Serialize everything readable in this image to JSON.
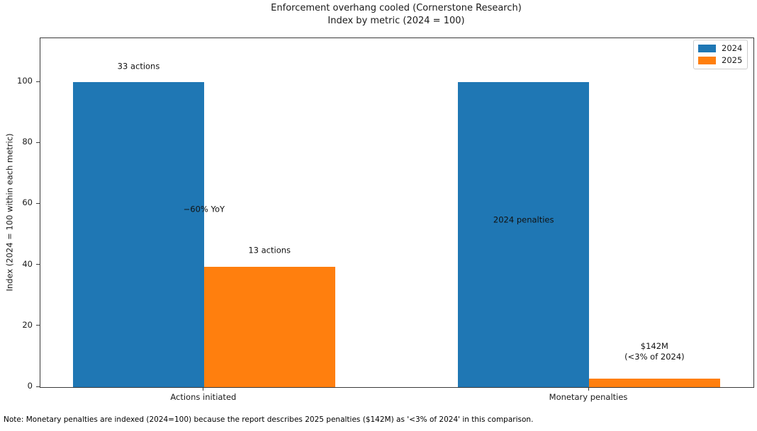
{
  "chart_data": {
    "type": "bar",
    "title": "Enforcement overhang cooled (Cornerstone Research)",
    "subtitle": "Index by metric (2024 = 100)",
    "ylabel": "Index (2024 = 100 within each metric)",
    "categories": [
      "Actions initiated",
      "Monetary penalties"
    ],
    "series": [
      {
        "name": "2024",
        "color": "#1f77b4",
        "values": [
          100,
          100
        ]
      },
      {
        "name": "2025",
        "color": "#ff7f0e",
        "values": [
          39.4,
          2.8
        ]
      }
    ],
    "yticks": [
      0,
      20,
      40,
      60,
      80,
      100
    ],
    "ylim": [
      0,
      114.4
    ],
    "xlim": [
      -0.425,
      1.427
    ],
    "bar_width": 0.34,
    "grid": false,
    "legend_position": "upper right",
    "annotations": [
      {
        "text": "33 actions",
        "x": -0.17,
        "y": 105.2
      },
      {
        "text": "−60% YoY",
        "x": 0.0,
        "y": 58.2
      },
      {
        "text": "13 actions",
        "x": 0.17,
        "y": 44.7
      },
      {
        "text": "2024 penalties",
        "x": 0.83,
        "y": 54.7
      },
      {
        "text": "$142M\n(<3% of 2024)",
        "x": 1.17,
        "y": 11.7
      }
    ],
    "note": "Note: Monetary penalties are indexed (2024=100) because the report describes 2025 penalties ($142M) as '<3% of 2024' in this comparison."
  }
}
